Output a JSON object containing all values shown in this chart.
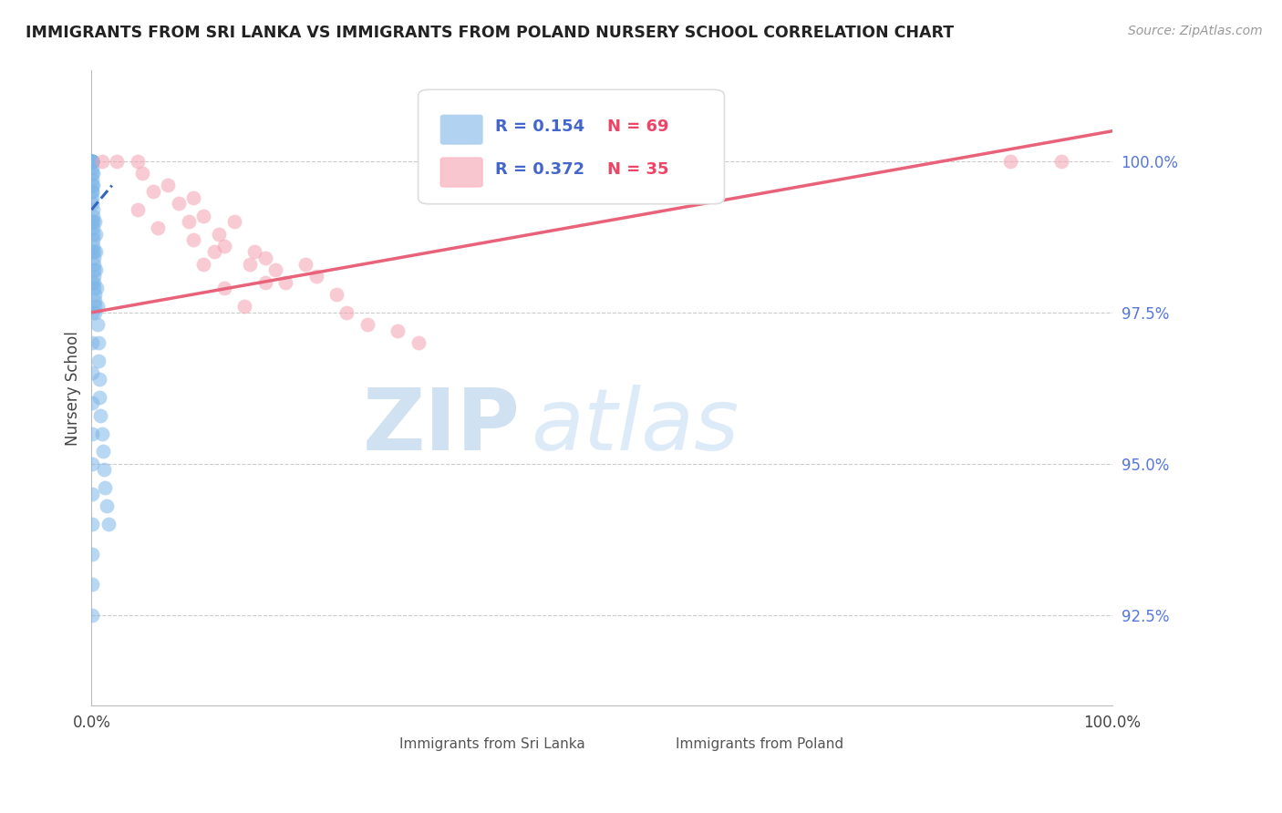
{
  "title": "IMMIGRANTS FROM SRI LANKA VS IMMIGRANTS FROM POLAND NURSERY SCHOOL CORRELATION CHART",
  "source": "Source: ZipAtlas.com",
  "ylabel": "Nursery School",
  "xmin": 0.0,
  "xmax": 100.0,
  "ymin": 91.0,
  "ymax": 101.5,
  "yticks": [
    92.5,
    95.0,
    97.5,
    100.0
  ],
  "ytick_labels": [
    "92.5%",
    "95.0%",
    "97.5%",
    "100.0%"
  ],
  "xtick_labels": [
    "0.0%",
    "100.0%"
  ],
  "blue_color": "#7EB6E8",
  "pink_color": "#F4A0B0",
  "trend_blue": "#3366BB",
  "trend_pink": "#E8637A",
  "legend_R1": "R = 0.154",
  "legend_N1": "N = 69",
  "legend_R2": "R = 0.372",
  "legend_N2": "N = 35",
  "legend_label1": "Immigrants from Sri Lanka",
  "legend_label2": "Immigrants from Poland",
  "watermark_zip": "ZIP",
  "watermark_atlas": "atlas",
  "sri_lanka_x": [
    0.05,
    0.05,
    0.05,
    0.05,
    0.05,
    0.08,
    0.08,
    0.08,
    0.08,
    0.1,
    0.1,
    0.1,
    0.1,
    0.1,
    0.12,
    0.12,
    0.12,
    0.15,
    0.15,
    0.15,
    0.15,
    0.2,
    0.2,
    0.2,
    0.2,
    0.25,
    0.25,
    0.25,
    0.3,
    0.3,
    0.3,
    0.35,
    0.35,
    0.4,
    0.4,
    0.45,
    0.5,
    0.55,
    0.6,
    0.65,
    0.7,
    0.75,
    0.8,
    0.9,
    1.0,
    1.1,
    1.2,
    1.3,
    1.5,
    1.7,
    0.05,
    0.05,
    0.05,
    0.05,
    0.05,
    0.05,
    0.05,
    0.05,
    0.05,
    0.05,
    0.05,
    0.05,
    0.06,
    0.06,
    0.07,
    0.07,
    0.09,
    0.11,
    0.13
  ],
  "sri_lanka_y": [
    100.0,
    100.0,
    100.0,
    100.0,
    100.0,
    100.0,
    100.0,
    99.9,
    99.8,
    99.7,
    99.6,
    99.5,
    99.4,
    99.3,
    99.2,
    99.1,
    99.0,
    98.9,
    98.8,
    98.7,
    98.6,
    98.5,
    98.4,
    98.3,
    98.2,
    98.1,
    98.0,
    97.9,
    97.8,
    97.7,
    97.6,
    97.5,
    99.0,
    98.8,
    98.5,
    98.2,
    97.9,
    97.6,
    97.3,
    97.0,
    96.7,
    96.4,
    96.1,
    95.8,
    95.5,
    95.2,
    94.9,
    94.6,
    94.3,
    94.0,
    100.0,
    99.5,
    99.0,
    98.5,
    98.0,
    97.5,
    97.0,
    96.5,
    96.0,
    95.5,
    95.0,
    94.5,
    94.0,
    93.5,
    93.0,
    92.5,
    100.0,
    99.8,
    99.6
  ],
  "poland_x": [
    1.0,
    2.5,
    4.5,
    5.0,
    6.0,
    4.5,
    7.5,
    8.5,
    10.0,
    9.5,
    11.0,
    12.5,
    13.0,
    14.0,
    16.0,
    15.5,
    17.0,
    18.0,
    19.0,
    21.0,
    22.0,
    10.0,
    12.0,
    24.0,
    25.0,
    27.0,
    11.0,
    13.0,
    15.0,
    17.0,
    90.0,
    95.0,
    32.0,
    30.0,
    6.5
  ],
  "poland_y": [
    100.0,
    100.0,
    100.0,
    99.8,
    99.5,
    99.2,
    99.6,
    99.3,
    99.4,
    99.0,
    99.1,
    98.8,
    98.6,
    99.0,
    98.5,
    98.3,
    98.4,
    98.2,
    98.0,
    98.3,
    98.1,
    98.7,
    98.5,
    97.8,
    97.5,
    97.3,
    98.3,
    97.9,
    97.6,
    98.0,
    100.0,
    100.0,
    97.0,
    97.2,
    98.9
  ],
  "trendline_blue_x0": 0.0,
  "trendline_blue_y0": 99.2,
  "trendline_blue_x1": 2.0,
  "trendline_blue_y1": 99.6,
  "trendline_pink_x0": 0.0,
  "trendline_pink_y0": 97.5,
  "trendline_pink_x1": 100.0,
  "trendline_pink_y1": 100.5
}
